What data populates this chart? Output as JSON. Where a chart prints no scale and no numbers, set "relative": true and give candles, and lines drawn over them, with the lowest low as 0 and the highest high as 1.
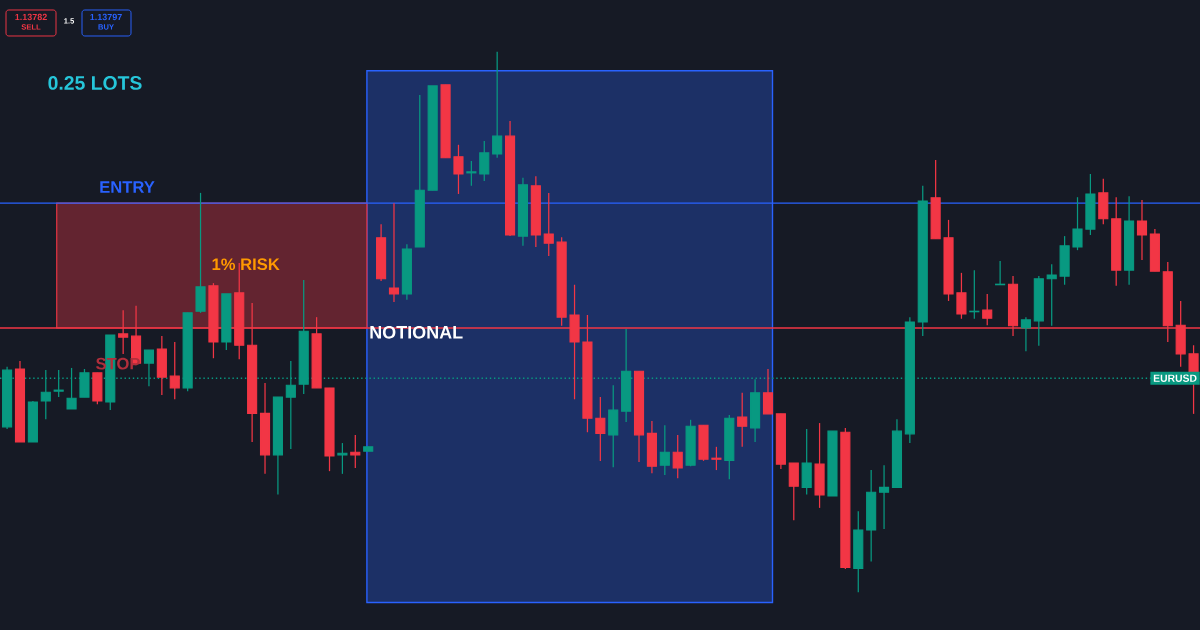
{
  "chart_data": {
    "type": "candlestick",
    "relative": true,
    "categories": [
      null,
      null,
      null,
      null,
      null,
      null,
      null,
      null,
      null,
      null,
      null,
      null,
      null,
      null,
      null,
      null,
      null,
      null,
      null,
      null,
      null,
      null,
      null,
      null,
      null,
      null,
      null,
      null,
      null,
      null,
      null,
      null,
      null,
      null,
      null,
      null,
      null,
      null,
      null,
      null,
      null,
      null,
      null,
      null,
      null,
      null,
      null,
      null,
      null,
      null,
      null,
      null,
      null,
      null,
      null,
      null,
      null,
      null,
      null,
      null,
      null,
      null,
      null,
      null,
      null,
      null,
      null,
      null,
      null,
      null,
      null,
      null,
      null,
      null,
      null,
      null,
      null,
      null,
      null,
      null,
      null,
      null,
      null,
      null,
      null,
      null,
      null,
      null,
      null,
      null,
      null,
      null,
      null
    ],
    "ohlc": [
      [
        0.306,
        0.417,
        0.302,
        0.411
      ],
      [
        0.413,
        0.428,
        0.278,
        0.278
      ],
      [
        0.278,
        0.354,
        0.278,
        0.352
      ],
      [
        0.354,
        0.411,
        0.32,
        0.37
      ],
      [
        0.372,
        0.411,
        0.361,
        0.374
      ],
      [
        0.339,
        0.415,
        0.339,
        0.359
      ],
      [
        0.361,
        0.413,
        0.361,
        0.406
      ],
      [
        0.406,
        0.406,
        0.348,
        0.354
      ],
      [
        0.352,
        0.476,
        0.337,
        0.476
      ],
      [
        0.478,
        0.522,
        0.441,
        0.472
      ],
      [
        0.474,
        0.53,
        0.42,
        0.424
      ],
      [
        0.424,
        0.448,
        0.381,
        0.448
      ],
      [
        0.45,
        0.474,
        0.365,
        0.398
      ],
      [
        0.4,
        0.463,
        0.357,
        0.378
      ],
      [
        0.378,
        0.517,
        0.372,
        0.517
      ],
      [
        0.52,
        0.739,
        0.517,
        0.565
      ],
      [
        0.567,
        0.572,
        0.433,
        0.463
      ],
      [
        0.463,
        0.552,
        0.448,
        0.552
      ],
      [
        0.554,
        0.609,
        0.431,
        0.457
      ],
      [
        0.457,
        0.535,
        0.278,
        0.331
      ],
      [
        0.331,
        0.387,
        0.219,
        0.254
      ],
      [
        0.254,
        0.361,
        0.181,
        0.361
      ],
      [
        0.361,
        0.428,
        0.265,
        0.383
      ],
      [
        0.385,
        0.578,
        0.367,
        0.483
      ],
      [
        0.478,
        0.509,
        0.378,
        0.378
      ],
      [
        0.378,
        0.378,
        0.224,
        0.252
      ],
      [
        0.254,
        0.276,
        0.219,
        0.257
      ],
      [
        0.259,
        0.291,
        0.23,
        0.254
      ],
      [
        0.261,
        0.269,
        0.261,
        0.269
      ],
      [
        0.656,
        0.681,
        0.576,
        0.58
      ],
      [
        0.563,
        0.72,
        0.537,
        0.552
      ],
      [
        0.552,
        0.644,
        0.541,
        0.635
      ],
      [
        0.639,
        0.92,
        0.639,
        0.744
      ],
      [
        0.744,
        0.937,
        0.744,
        0.937
      ],
      [
        0.939,
        0.939,
        0.804,
        0.804
      ],
      [
        0.806,
        0.828,
        0.737,
        0.774
      ],
      [
        0.776,
        0.798,
        0.752,
        0.778
      ],
      [
        0.774,
        0.835,
        0.761,
        0.813
      ],
      [
        0.811,
        1.0,
        0.804,
        0.844
      ],
      [
        0.844,
        0.872,
        0.659,
        0.661
      ],
      [
        0.659,
        0.767,
        0.641,
        0.754
      ],
      [
        0.752,
        0.77,
        0.639,
        0.661
      ],
      [
        0.663,
        0.739,
        0.622,
        0.646
      ],
      [
        0.648,
        0.657,
        0.493,
        0.509
      ],
      [
        0.513,
        0.569,
        0.357,
        0.463
      ],
      [
        0.463,
        0.513,
        0.296,
        0.322
      ],
      [
        0.322,
        0.361,
        0.243,
        0.294
      ],
      [
        0.291,
        0.383,
        0.231,
        0.337
      ],
      [
        0.335,
        0.487,
        0.315,
        0.409
      ],
      [
        0.409,
        0.409,
        0.241,
        0.291
      ],
      [
        0.294,
        0.317,
        0.22,
        0.233
      ],
      [
        0.235,
        0.309,
        0.217,
        0.259
      ],
      [
        0.259,
        0.291,
        0.211,
        0.23
      ],
      [
        0.235,
        0.319,
        0.233,
        0.307
      ],
      [
        0.309,
        0.309,
        0.243,
        0.246
      ],
      [
        0.248,
        0.269,
        0.226,
        0.246
      ],
      [
        0.244,
        0.328,
        0.209,
        0.322
      ],
      [
        0.324,
        0.369,
        0.269,
        0.307
      ],
      [
        0.304,
        0.394,
        0.278,
        0.369
      ],
      [
        0.369,
        0.413,
        0.33,
        0.33
      ],
      [
        0.33,
        0.33,
        0.228,
        0.237
      ],
      [
        0.239,
        0.239,
        0.133,
        0.196
      ],
      [
        0.194,
        0.302,
        0.181,
        0.239
      ],
      [
        0.237,
        0.313,
        0.156,
        0.18
      ],
      [
        0.178,
        0.298,
        0.178,
        0.298
      ],
      [
        0.296,
        0.304,
        0.043,
        0.046
      ],
      [
        0.044,
        0.15,
        0.0,
        0.115
      ],
      [
        0.115,
        0.226,
        0.057,
        0.185
      ],
      [
        0.185,
        0.235,
        0.117,
        0.194
      ],
      [
        0.194,
        0.32,
        0.194,
        0.298
      ],
      [
        0.293,
        0.509,
        0.276,
        0.5
      ],
      [
        0.5,
        0.752,
        0.474,
        0.724
      ],
      [
        0.73,
        0.8,
        0.654,
        0.654
      ],
      [
        0.656,
        0.689,
        0.539,
        0.552
      ],
      [
        0.554,
        0.591,
        0.506,
        0.515
      ],
      [
        0.519,
        0.596,
        0.506,
        0.52
      ],
      [
        0.522,
        0.552,
        0.494,
        0.507
      ],
      [
        0.569,
        0.613,
        0.569,
        0.57
      ],
      [
        0.57,
        0.585,
        0.474,
        0.493
      ],
      [
        0.489,
        0.509,
        0.446,
        0.504
      ],
      [
        0.502,
        0.585,
        0.456,
        0.58
      ],
      [
        0.58,
        0.607,
        0.493,
        0.587
      ],
      [
        0.585,
        0.659,
        0.569,
        0.641
      ],
      [
        0.639,
        0.731,
        0.633,
        0.672
      ],
      [
        0.672,
        0.774,
        0.661,
        0.737
      ],
      [
        0.739,
        0.765,
        0.681,
        0.691
      ],
      [
        0.691,
        0.731,
        0.567,
        0.596
      ],
      [
        0.596,
        0.733,
        0.569,
        0.687
      ],
      [
        0.687,
        0.726,
        0.615,
        0.661
      ],
      [
        0.663,
        0.672,
        0.594,
        0.594
      ],
      [
        0.593,
        0.611,
        0.463,
        0.493
      ],
      [
        0.494,
        0.539,
        0.417,
        0.441
      ],
      [
        0.441,
        0.457,
        0.33,
        0.407
      ]
    ],
    "colors": [
      "#089981",
      "#f23645",
      "#089981",
      "#089981",
      "#089981",
      "#089981",
      "#089981",
      "#f23645",
      "#089981",
      "#f23645",
      "#f23645",
      "#089981",
      "#f23645",
      "#f23645",
      "#089981",
      "#089981",
      "#f23645",
      "#089981",
      "#f23645",
      "#f23645",
      "#f23645",
      "#089981",
      "#089981",
      "#089981",
      "#f23645",
      "#f23645",
      "#089981",
      "#f23645",
      "#089981",
      "#f23645",
      "#f23645",
      "#089981",
      "#089981",
      "#089981",
      "#f23645",
      "#f23645",
      "#089981",
      "#089981",
      "#089981",
      "#f23645",
      "#089981",
      "#f23645",
      "#f23645",
      "#f23645",
      "#f23645",
      "#f23645",
      "#f23645",
      "#089981",
      "#089981",
      "#f23645",
      "#f23645",
      "#089981",
      "#f23645",
      "#089981",
      "#f23645",
      "#f23645",
      "#089981",
      "#f23645",
      "#089981",
      "#f23645",
      "#f23645",
      "#f23645",
      "#089981",
      "#f23645",
      "#089981",
      "#f23645",
      "#089981",
      "#089981",
      "#089981",
      "#089981",
      "#089981",
      "#089981",
      "#f23645",
      "#f23645",
      "#f23645",
      "#089981",
      "#f23645",
      "#089981",
      "#f23645",
      "#089981",
      "#089981",
      "#089981",
      "#089981",
      "#089981",
      "#089981",
      "#f23645",
      "#f23645",
      "#089981",
      "#f23645",
      "#f23645",
      "#f23645",
      "#f23645",
      "#f23645"
    ],
    "ref_lines": [
      {
        "axis": "y",
        "value": 0.72,
        "label": "ENTRY",
        "color": "#2962ff",
        "line_style": "solid"
      },
      {
        "axis": "y",
        "value": 0.489,
        "label": "STOP",
        "color": "#f23645",
        "line_style": "solid"
      },
      {
        "axis": "y",
        "value": 0.396,
        "label": "EURUSD",
        "color": "#089981",
        "line_style": "dotted"
      }
    ],
    "bands": [
      {
        "axis": "y",
        "from": 0.489,
        "to": 0.72,
        "label": "1% RISK",
        "color": "#f23645"
      }
    ],
    "annotations": [
      "1.13782",
      "SELL",
      "1.5",
      "1.13797",
      "BUY",
      "0.25 LOTS",
      "NOTIONAL"
    ]
  }
}
